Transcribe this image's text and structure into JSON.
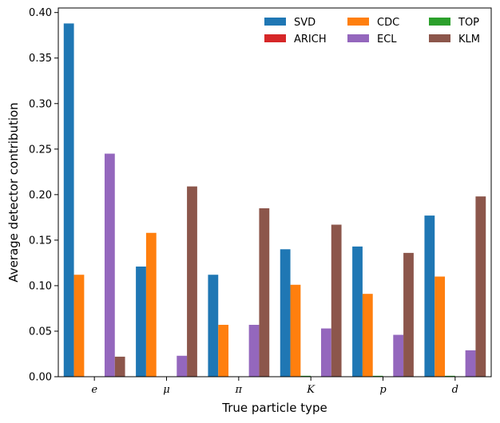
{
  "chart_data": {
    "type": "bar",
    "xlabel": "True particle type",
    "ylabel": "Average detector contribution",
    "categories": [
      "e",
      "μ",
      "π",
      "K",
      "p",
      "d"
    ],
    "ylim": [
      0,
      0.405
    ],
    "yticks": [
      "0.00",
      "0.05",
      "0.10",
      "0.15",
      "0.20",
      "0.25",
      "0.30",
      "0.35",
      "0.40"
    ],
    "grid": false,
    "legend_position": "top-right",
    "legend_columns": 3,
    "series": [
      {
        "name": "SVD",
        "color": "#1f77b4",
        "values": [
          0.388,
          0.121,
          0.112,
          0.14,
          0.143,
          0.177
        ]
      },
      {
        "name": "CDC",
        "color": "#ff7f0e",
        "values": [
          0.112,
          0.158,
          0.057,
          0.101,
          0.091,
          0.11
        ]
      },
      {
        "name": "TOP",
        "color": "#2ca02c",
        "values": [
          0.0,
          0.0,
          0.0,
          0.001,
          0.001,
          0.001
        ]
      },
      {
        "name": "ARICH",
        "color": "#d62728",
        "values": [
          0.0,
          0.0,
          0.0,
          0.0,
          0.0,
          0.0
        ]
      },
      {
        "name": "ECL",
        "color": "#9467bd",
        "values": [
          0.245,
          0.023,
          0.057,
          0.053,
          0.046,
          0.029
        ]
      },
      {
        "name": "KLM",
        "color": "#8c564b",
        "values": [
          0.022,
          0.209,
          0.185,
          0.167,
          0.136,
          0.198
        ]
      }
    ]
  }
}
